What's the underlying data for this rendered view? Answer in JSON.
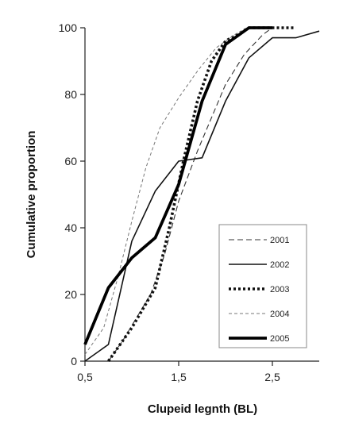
{
  "chart_data": {
    "type": "line",
    "title": "",
    "xlabel": "Clupeid legnth (BL)",
    "ylabel": "Cumulative proportion",
    "xlim": [
      0.5,
      3.0
    ],
    "ylim": [
      0,
      100
    ],
    "x_ticks": [
      "0,5",
      "1,5",
      "2,5"
    ],
    "x_tick_values": [
      0.5,
      1.5,
      2.5
    ],
    "y_ticks": [
      "0",
      "20",
      "40",
      "60",
      "80",
      "100"
    ],
    "y_tick_values": [
      0,
      20,
      40,
      60,
      80,
      100
    ],
    "grid": false,
    "legend_position": "bottom-right",
    "series": [
      {
        "name": "2001",
        "style": "thin-dash",
        "points": [
          [
            0.75,
            0
          ],
          [
            0.9,
            6
          ],
          [
            1.05,
            13
          ],
          [
            1.2,
            20
          ],
          [
            1.35,
            32
          ],
          [
            1.5,
            48
          ],
          [
            1.7,
            63
          ],
          [
            1.85,
            73
          ],
          [
            2.0,
            83
          ],
          [
            2.2,
            92
          ],
          [
            2.4,
            98
          ],
          [
            2.5,
            100
          ]
        ]
      },
      {
        "name": "2002",
        "style": "solid",
        "points": [
          [
            0.5,
            0
          ],
          [
            0.75,
            5
          ],
          [
            1.0,
            36
          ],
          [
            1.25,
            51
          ],
          [
            1.5,
            60
          ],
          [
            1.75,
            61
          ],
          [
            2.0,
            78
          ],
          [
            2.25,
            91
          ],
          [
            2.5,
            97
          ],
          [
            2.75,
            97
          ],
          [
            3.0,
            99
          ]
        ]
      },
      {
        "name": "2003",
        "style": "dotted",
        "points": [
          [
            0.75,
            0
          ],
          [
            1.0,
            10
          ],
          [
            1.25,
            22
          ],
          [
            1.4,
            40
          ],
          [
            1.55,
            60
          ],
          [
            1.7,
            78
          ],
          [
            1.85,
            90
          ],
          [
            2.0,
            96
          ],
          [
            2.25,
            100
          ],
          [
            2.75,
            100
          ]
        ]
      },
      {
        "name": "2004",
        "style": "light-dash",
        "points": [
          [
            0.5,
            2
          ],
          [
            0.7,
            10
          ],
          [
            0.85,
            25
          ],
          [
            1.0,
            42
          ],
          [
            1.15,
            58
          ],
          [
            1.3,
            70
          ],
          [
            1.5,
            79
          ],
          [
            1.7,
            87
          ],
          [
            1.9,
            94
          ],
          [
            2.1,
            98
          ],
          [
            2.25,
            100
          ]
        ]
      },
      {
        "name": "2005",
        "style": "thick",
        "points": [
          [
            0.5,
            5
          ],
          [
            0.75,
            22
          ],
          [
            1.0,
            31
          ],
          [
            1.25,
            37
          ],
          [
            1.5,
            53
          ],
          [
            1.75,
            78
          ],
          [
            2.0,
            95
          ],
          [
            2.25,
            100
          ],
          [
            2.5,
            100
          ]
        ]
      }
    ]
  }
}
